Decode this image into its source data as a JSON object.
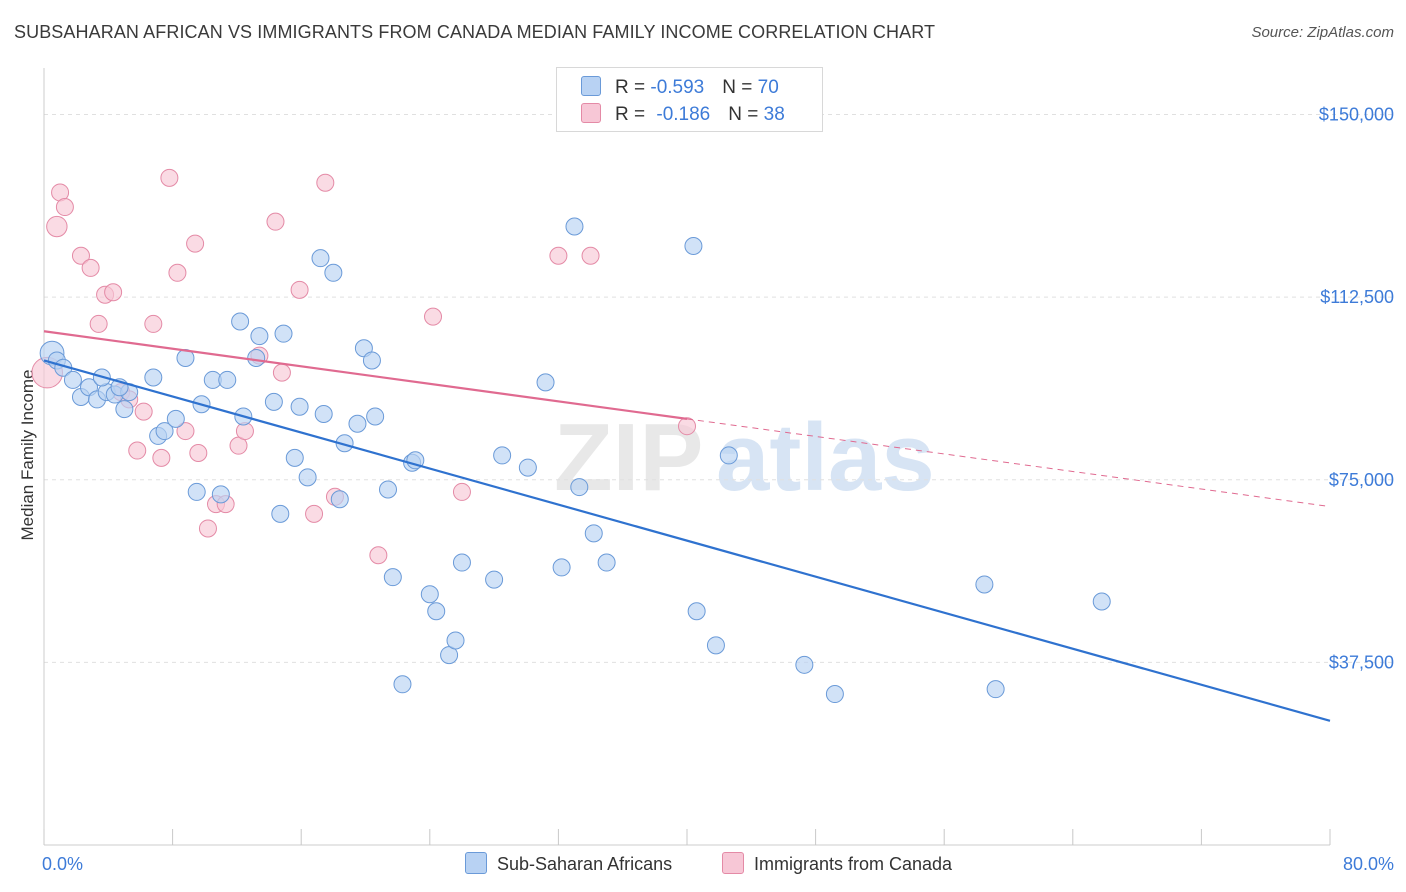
{
  "title": "SUBSAHARAN AFRICAN VS IMMIGRANTS FROM CANADA MEDIAN FAMILY INCOME CORRELATION CHART",
  "source": "Source: ZipAtlas.com",
  "legend_top": {
    "rows": [
      {
        "r_label": "R = ",
        "r_value": "-0.593",
        "n_label": "N = ",
        "n_value": "70"
      },
      {
        "r_label": "R = ",
        "r_value": "-0.186",
        "n_label": "N = ",
        "n_value": "38"
      }
    ]
  },
  "watermark": {
    "zip": "ZIP",
    "atlas": "atlas"
  },
  "colors": {
    "blue_fill": "#b8d2f3",
    "blue_stroke": "#6a9ad8",
    "blue_line": "#2f72cf",
    "pink_fill": "#f7c7d6",
    "pink_stroke": "#e48aa6",
    "pink_line": "#e06a90",
    "tick_label": "#3d7bd8",
    "grid": "#e0e0e0"
  },
  "chart_data": {
    "type": "scatter",
    "title": "SUBSAHARAN AFRICAN VS IMMIGRANTS FROM CANADA MEDIAN FAMILY INCOME CORRELATION CHART",
    "xlabel": "",
    "ylabel": "Median Family Income",
    "xlim": [
      0,
      80
    ],
    "ylim": [
      0,
      157500
    ],
    "x_tick_labels": [
      "0.0%",
      "80.0%"
    ],
    "y_ticks": [
      37500,
      75000,
      112500,
      150000
    ],
    "y_tick_labels": [
      "$37,500",
      "$75,000",
      "$112,500",
      "$150,000"
    ],
    "grid": true,
    "legend_placement": "top-center",
    "series": [
      {
        "name": "Sub-Saharan Africans",
        "color": "#b8d2f3",
        "points": [
          [
            0.5,
            101000,
            14
          ],
          [
            0.8,
            99500,
            10
          ],
          [
            1.2,
            98000,
            10
          ],
          [
            1.8,
            95500,
            10
          ],
          [
            2.3,
            92000,
            10
          ],
          [
            2.8,
            94000,
            10
          ],
          [
            3.3,
            91500,
            10
          ],
          [
            3.9,
            93000,
            10
          ],
          [
            4.4,
            92500,
            10
          ],
          [
            3.6,
            96000,
            10
          ],
          [
            5.3,
            93000,
            10
          ],
          [
            5.0,
            89500,
            10
          ],
          [
            6.8,
            96000,
            10
          ],
          [
            7.1,
            84000,
            10
          ],
          [
            8.8,
            100000,
            10
          ],
          [
            9.8,
            90500,
            10
          ],
          [
            10.5,
            95500,
            10
          ],
          [
            11.4,
            95500,
            10
          ],
          [
            12.2,
            107500,
            10
          ],
          [
            12.4,
            88000,
            10
          ],
          [
            13.2,
            100000,
            10
          ],
          [
            13.4,
            104500,
            10
          ],
          [
            14.3,
            91000,
            10
          ],
          [
            14.9,
            105000,
            10
          ],
          [
            15.6,
            79500,
            10
          ],
          [
            15.9,
            90000,
            10
          ],
          [
            16.4,
            75500,
            10
          ],
          [
            17.2,
            120500,
            10
          ],
          [
            17.4,
            88500,
            10
          ],
          [
            18.0,
            117500,
            10
          ],
          [
            18.4,
            71000,
            10
          ],
          [
            18.7,
            82500,
            10
          ],
          [
            19.5,
            86500,
            10
          ],
          [
            19.9,
            102000,
            10
          ],
          [
            20.4,
            99500,
            10
          ],
          [
            20.6,
            88000,
            10
          ],
          [
            21.4,
            73000,
            10
          ],
          [
            21.7,
            55000,
            10
          ],
          [
            22.9,
            78500,
            10
          ],
          [
            23.1,
            79000,
            10
          ],
          [
            24.0,
            51500,
            10
          ],
          [
            24.4,
            48000,
            10
          ],
          [
            25.2,
            39000,
            10
          ],
          [
            25.6,
            42000,
            10
          ],
          [
            26.0,
            58000,
            10
          ],
          [
            28.0,
            54500,
            10
          ],
          [
            28.5,
            80000,
            10
          ],
          [
            30.1,
            77500,
            10
          ],
          [
            31.2,
            95000,
            10
          ],
          [
            32.2,
            57000,
            10
          ],
          [
            33.3,
            73500,
            10
          ],
          [
            34.2,
            64000,
            10
          ],
          [
            35.0,
            58000,
            10
          ],
          [
            7.5,
            85000,
            10
          ],
          [
            9.5,
            72500,
            10
          ],
          [
            11.0,
            72000,
            10
          ],
          [
            14.7,
            68000,
            10
          ],
          [
            22.3,
            33000,
            10
          ],
          [
            33.0,
            127000,
            10
          ],
          [
            40.4,
            123000,
            10
          ],
          [
            40.6,
            48000,
            10
          ],
          [
            41.8,
            41000,
            10
          ],
          [
            42.6,
            80000,
            10
          ],
          [
            47.3,
            37000,
            10
          ],
          [
            49.2,
            31000,
            10
          ],
          [
            58.5,
            53500,
            10
          ],
          [
            59.2,
            32000,
            10
          ],
          [
            65.8,
            50000,
            10
          ],
          [
            4.7,
            94000,
            10
          ],
          [
            8.2,
            87500,
            10
          ]
        ]
      },
      {
        "name": "Immigrants from Canada",
        "color": "#f7c7d6",
        "points": [
          [
            0.2,
            97000,
            18
          ],
          [
            1.0,
            134000,
            10
          ],
          [
            1.3,
            131000,
            10
          ],
          [
            0.8,
            127000,
            12
          ],
          [
            2.3,
            121000,
            10
          ],
          [
            2.9,
            118500,
            10
          ],
          [
            3.4,
            107000,
            10
          ],
          [
            3.8,
            113000,
            10
          ],
          [
            4.3,
            113500,
            10
          ],
          [
            4.8,
            93000,
            10
          ],
          [
            5.3,
            91500,
            10
          ],
          [
            5.8,
            81000,
            10
          ],
          [
            6.2,
            89000,
            10
          ],
          [
            6.8,
            107000,
            10
          ],
          [
            7.3,
            79500,
            10
          ],
          [
            7.8,
            137000,
            10
          ],
          [
            8.3,
            117500,
            10
          ],
          [
            8.8,
            85000,
            10
          ],
          [
            9.4,
            123500,
            10
          ],
          [
            9.6,
            80500,
            10
          ],
          [
            10.2,
            65000,
            10
          ],
          [
            10.7,
            70000,
            10
          ],
          [
            11.3,
            70000,
            10
          ],
          [
            12.1,
            82000,
            10
          ],
          [
            12.5,
            85000,
            10
          ],
          [
            13.4,
            100500,
            10
          ],
          [
            14.4,
            128000,
            10
          ],
          [
            14.8,
            97000,
            10
          ],
          [
            15.9,
            114000,
            10
          ],
          [
            16.8,
            68000,
            10
          ],
          [
            17.5,
            136000,
            10
          ],
          [
            18.1,
            71500,
            10
          ],
          [
            20.8,
            59500,
            10
          ],
          [
            24.2,
            108500,
            10
          ],
          [
            26.0,
            72500,
            10
          ],
          [
            32.0,
            121000,
            10
          ],
          [
            34.0,
            121000,
            10
          ],
          [
            40.0,
            86000,
            10
          ]
        ]
      }
    ],
    "trendlines": [
      {
        "series": "Sub-Saharan Africans",
        "x": [
          0,
          80
        ],
        "y": [
          99500,
          25500
        ],
        "style": "solid"
      },
      {
        "series": "Immigrants from Canada",
        "x": [
          0,
          40
        ],
        "y": [
          105500,
          87500
        ],
        "style": "solid"
      },
      {
        "series": "Immigrants from Canada",
        "x": [
          40,
          80
        ],
        "y": [
          87500,
          69500
        ],
        "style": "dashed"
      }
    ]
  },
  "bottom_legend": [
    {
      "label": "Sub-Saharan Africans"
    },
    {
      "label": "Immigrants from Canada"
    }
  ]
}
